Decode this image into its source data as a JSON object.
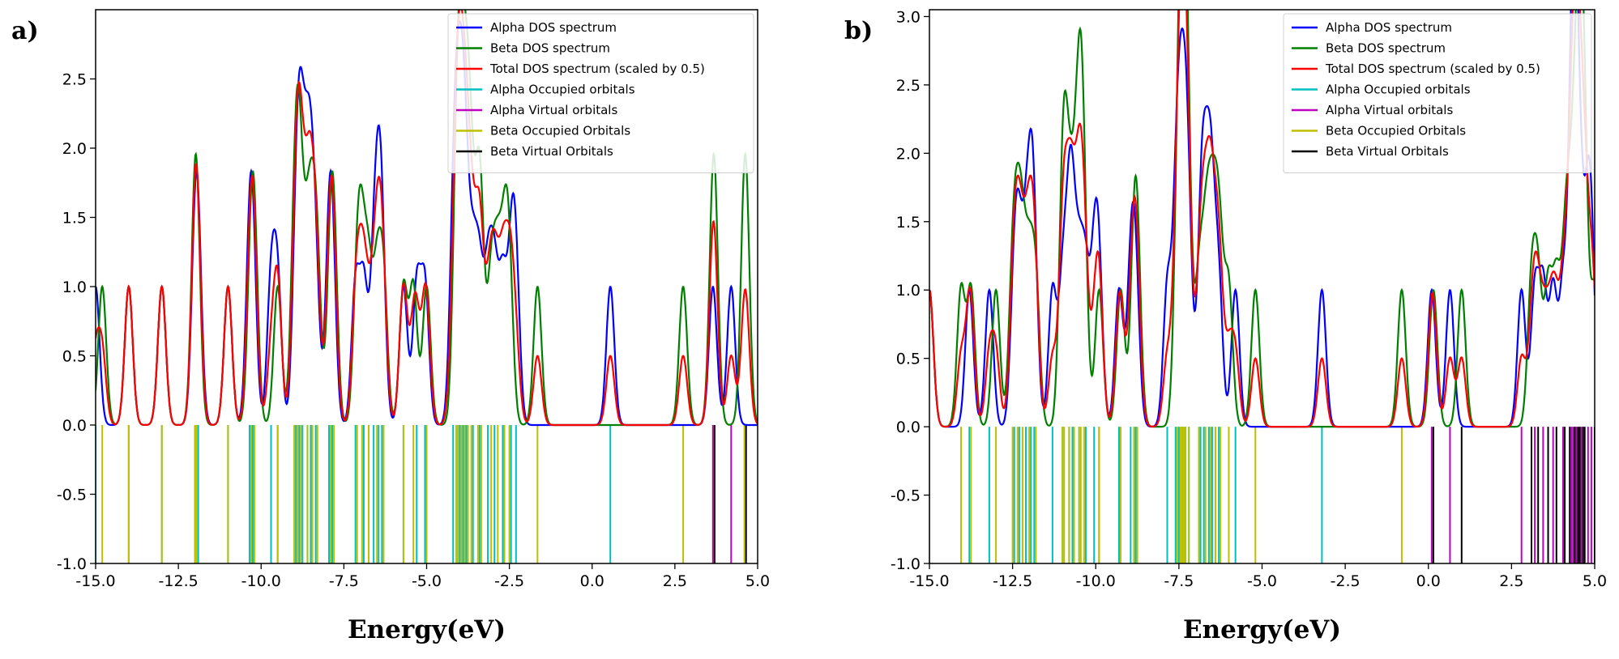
{
  "chart_data": [
    {
      "panel_label": "a)",
      "type": "line",
      "xlabel": "Energy(eV)",
      "ylabel": "",
      "xlim": [
        -15.0,
        5.0
      ],
      "ylim": [
        -1.0,
        3.0
      ],
      "xticks": [
        -15.0,
        -12.5,
        -10.0,
        -7.5,
        -5.0,
        -2.5,
        0.0,
        2.5,
        5.0
      ],
      "xtick_labels": [
        "-15.0",
        "-12.5",
        "-10.0",
        "-7.5",
        "-5.0",
        "-2.5",
        "0.0",
        "2.5",
        "5.0"
      ],
      "yticks": [
        -1.0,
        -0.5,
        0.0,
        0.5,
        1.0,
        1.5,
        2.0,
        2.5
      ],
      "ytick_labels": [
        "-1.0",
        "-0.5",
        "0.0",
        "0.5",
        "1.0",
        "1.5",
        "2.0",
        "2.5"
      ],
      "legend_position": "top-right",
      "broadening_width_eV": 0.12,
      "total_scale": 0.5,
      "alpha_occupied": [
        -15.0,
        -14.0,
        -13.0,
        -12.0,
        -11.9,
        -11.0,
        -10.35,
        -10.25,
        -9.7,
        -9.5,
        -8.95,
        -8.85,
        -8.75,
        -8.6,
        -8.5,
        -8.35,
        -7.95,
        -7.85,
        -7.15,
        -6.9,
        -6.6,
        -6.45,
        -6.35,
        -5.7,
        -5.3,
        -5.05,
        -4.2,
        -4.1,
        -4.0,
        -3.9,
        -3.8,
        -3.6,
        -3.4,
        -3.15,
        -2.95,
        -2.7,
        -2.45,
        -2.3,
        0.55
      ],
      "beta_occupied": [
        -14.8,
        -14.0,
        -13.0,
        -12.0,
        -11.95,
        -11.0,
        -10.3,
        -10.2,
        -9.5,
        -9.0,
        -8.9,
        -8.8,
        -8.6,
        -8.45,
        -8.3,
        -7.9,
        -7.8,
        -7.1,
        -6.95,
        -6.75,
        -6.5,
        -6.3,
        -5.7,
        -5.4,
        -5.0,
        -4.1,
        -4.05,
        -3.95,
        -3.85,
        -3.75,
        -3.65,
        -3.45,
        -3.35,
        -3.05,
        -2.85,
        -2.65,
        -2.5,
        -1.65,
        2.75,
        3.65,
        4.6
      ],
      "alpha_virtual": [
        3.65,
        4.2
      ],
      "beta_virtual": [
        3.7,
        4.65
      ],
      "series": [
        {
          "name": "Alpha DOS spectrum",
          "color": "#0000ff"
        },
        {
          "name": "Beta DOS spectrum",
          "color": "#008000"
        },
        {
          "name": "Total DOS spectrum (scaled by 0.5)",
          "color": "#ff0000"
        },
        {
          "name": "Alpha Occupied orbitals",
          "color": "#00bfbf"
        },
        {
          "name": "Alpha Virtual orbitals",
          "color": "#bf00bf"
        },
        {
          "name": "Beta Occupied Orbitals",
          "color": "#bfbf00"
        },
        {
          "name": "Beta Virtual Orbitals",
          "color": "#000000"
        }
      ]
    },
    {
      "panel_label": "b)",
      "type": "line",
      "xlabel": "Energy(eV)",
      "ylabel": "",
      "xlim": [
        -15.0,
        5.0
      ],
      "ylim": [
        -1.0,
        3.05
      ],
      "xticks": [
        -15.0,
        -12.5,
        -10.0,
        -7.5,
        -5.0,
        -2.5,
        0.0,
        2.5,
        5.0
      ],
      "xtick_labels": [
        "-15.0",
        "-12.5",
        "-10.0",
        "-7.5",
        "-5.0",
        "-2.5",
        "0.0",
        "2.5",
        "5.0"
      ],
      "yticks": [
        -1.0,
        -0.5,
        0.0,
        0.5,
        1.0,
        1.5,
        2.0,
        2.5,
        3.0
      ],
      "ytick_labels": [
        "-1.0",
        "-0.5",
        "0.0",
        "0.5",
        "1.0",
        "1.5",
        "2.0",
        "2.5",
        "3.0"
      ],
      "legend_position": "top-right",
      "broadening_width_eV": 0.12,
      "total_scale": 0.5,
      "alpha_occupied": [
        -15.0,
        -13.8,
        -13.2,
        -12.45,
        -12.3,
        -12.1,
        -11.95,
        -11.85,
        -11.3,
        -11.0,
        -10.8,
        -10.7,
        -10.5,
        -10.3,
        -10.05,
        -9.9,
        -9.3,
        -8.95,
        -8.8,
        -7.85,
        -7.6,
        -7.5,
        -7.4,
        -7.3,
        -7.2,
        -6.85,
        -6.75,
        -6.6,
        -6.5,
        -6.3,
        -5.8,
        -3.2
      ],
      "beta_occupied": [
        -15.0,
        -14.05,
        -13.75,
        -13.0,
        -12.5,
        -12.35,
        -12.2,
        -12.0,
        -11.8,
        -11.0,
        -10.95,
        -10.8,
        -10.65,
        -10.5,
        -10.45,
        -10.35,
        -9.9,
        -9.25,
        -8.85,
        -8.75,
        -7.55,
        -7.45,
        -7.4,
        -7.35,
        -7.3,
        -7.2,
        -6.9,
        -6.7,
        -6.55,
        -6.4,
        -6.25,
        -6.0,
        -5.2,
        -0.8
      ],
      "alpha_virtual": [
        0.1,
        0.65,
        2.8,
        3.2,
        3.45,
        3.75,
        4.05,
        4.3,
        4.35,
        4.4,
        4.45,
        4.6,
        4.8,
        4.9
      ],
      "beta_virtual": [
        0.15,
        1.0,
        3.1,
        3.3,
        3.6,
        3.85,
        4.1,
        4.25,
        4.4,
        4.5,
        4.55,
        4.65,
        4.7,
        5.0
      ],
      "series": [
        {
          "name": "Alpha DOS spectrum",
          "color": "#0000ff"
        },
        {
          "name": "Beta DOS spectrum",
          "color": "#008000"
        },
        {
          "name": "Total DOS spectrum (scaled by 0.5)",
          "color": "#ff0000"
        },
        {
          "name": "Alpha Occupied orbitals",
          "color": "#00bfbf"
        },
        {
          "name": "Alpha Virtual orbitals",
          "color": "#bf00bf"
        },
        {
          "name": "Beta Occupied Orbitals",
          "color": "#bfbf00"
        },
        {
          "name": "Beta Virtual Orbitals",
          "color": "#000000"
        }
      ]
    }
  ]
}
